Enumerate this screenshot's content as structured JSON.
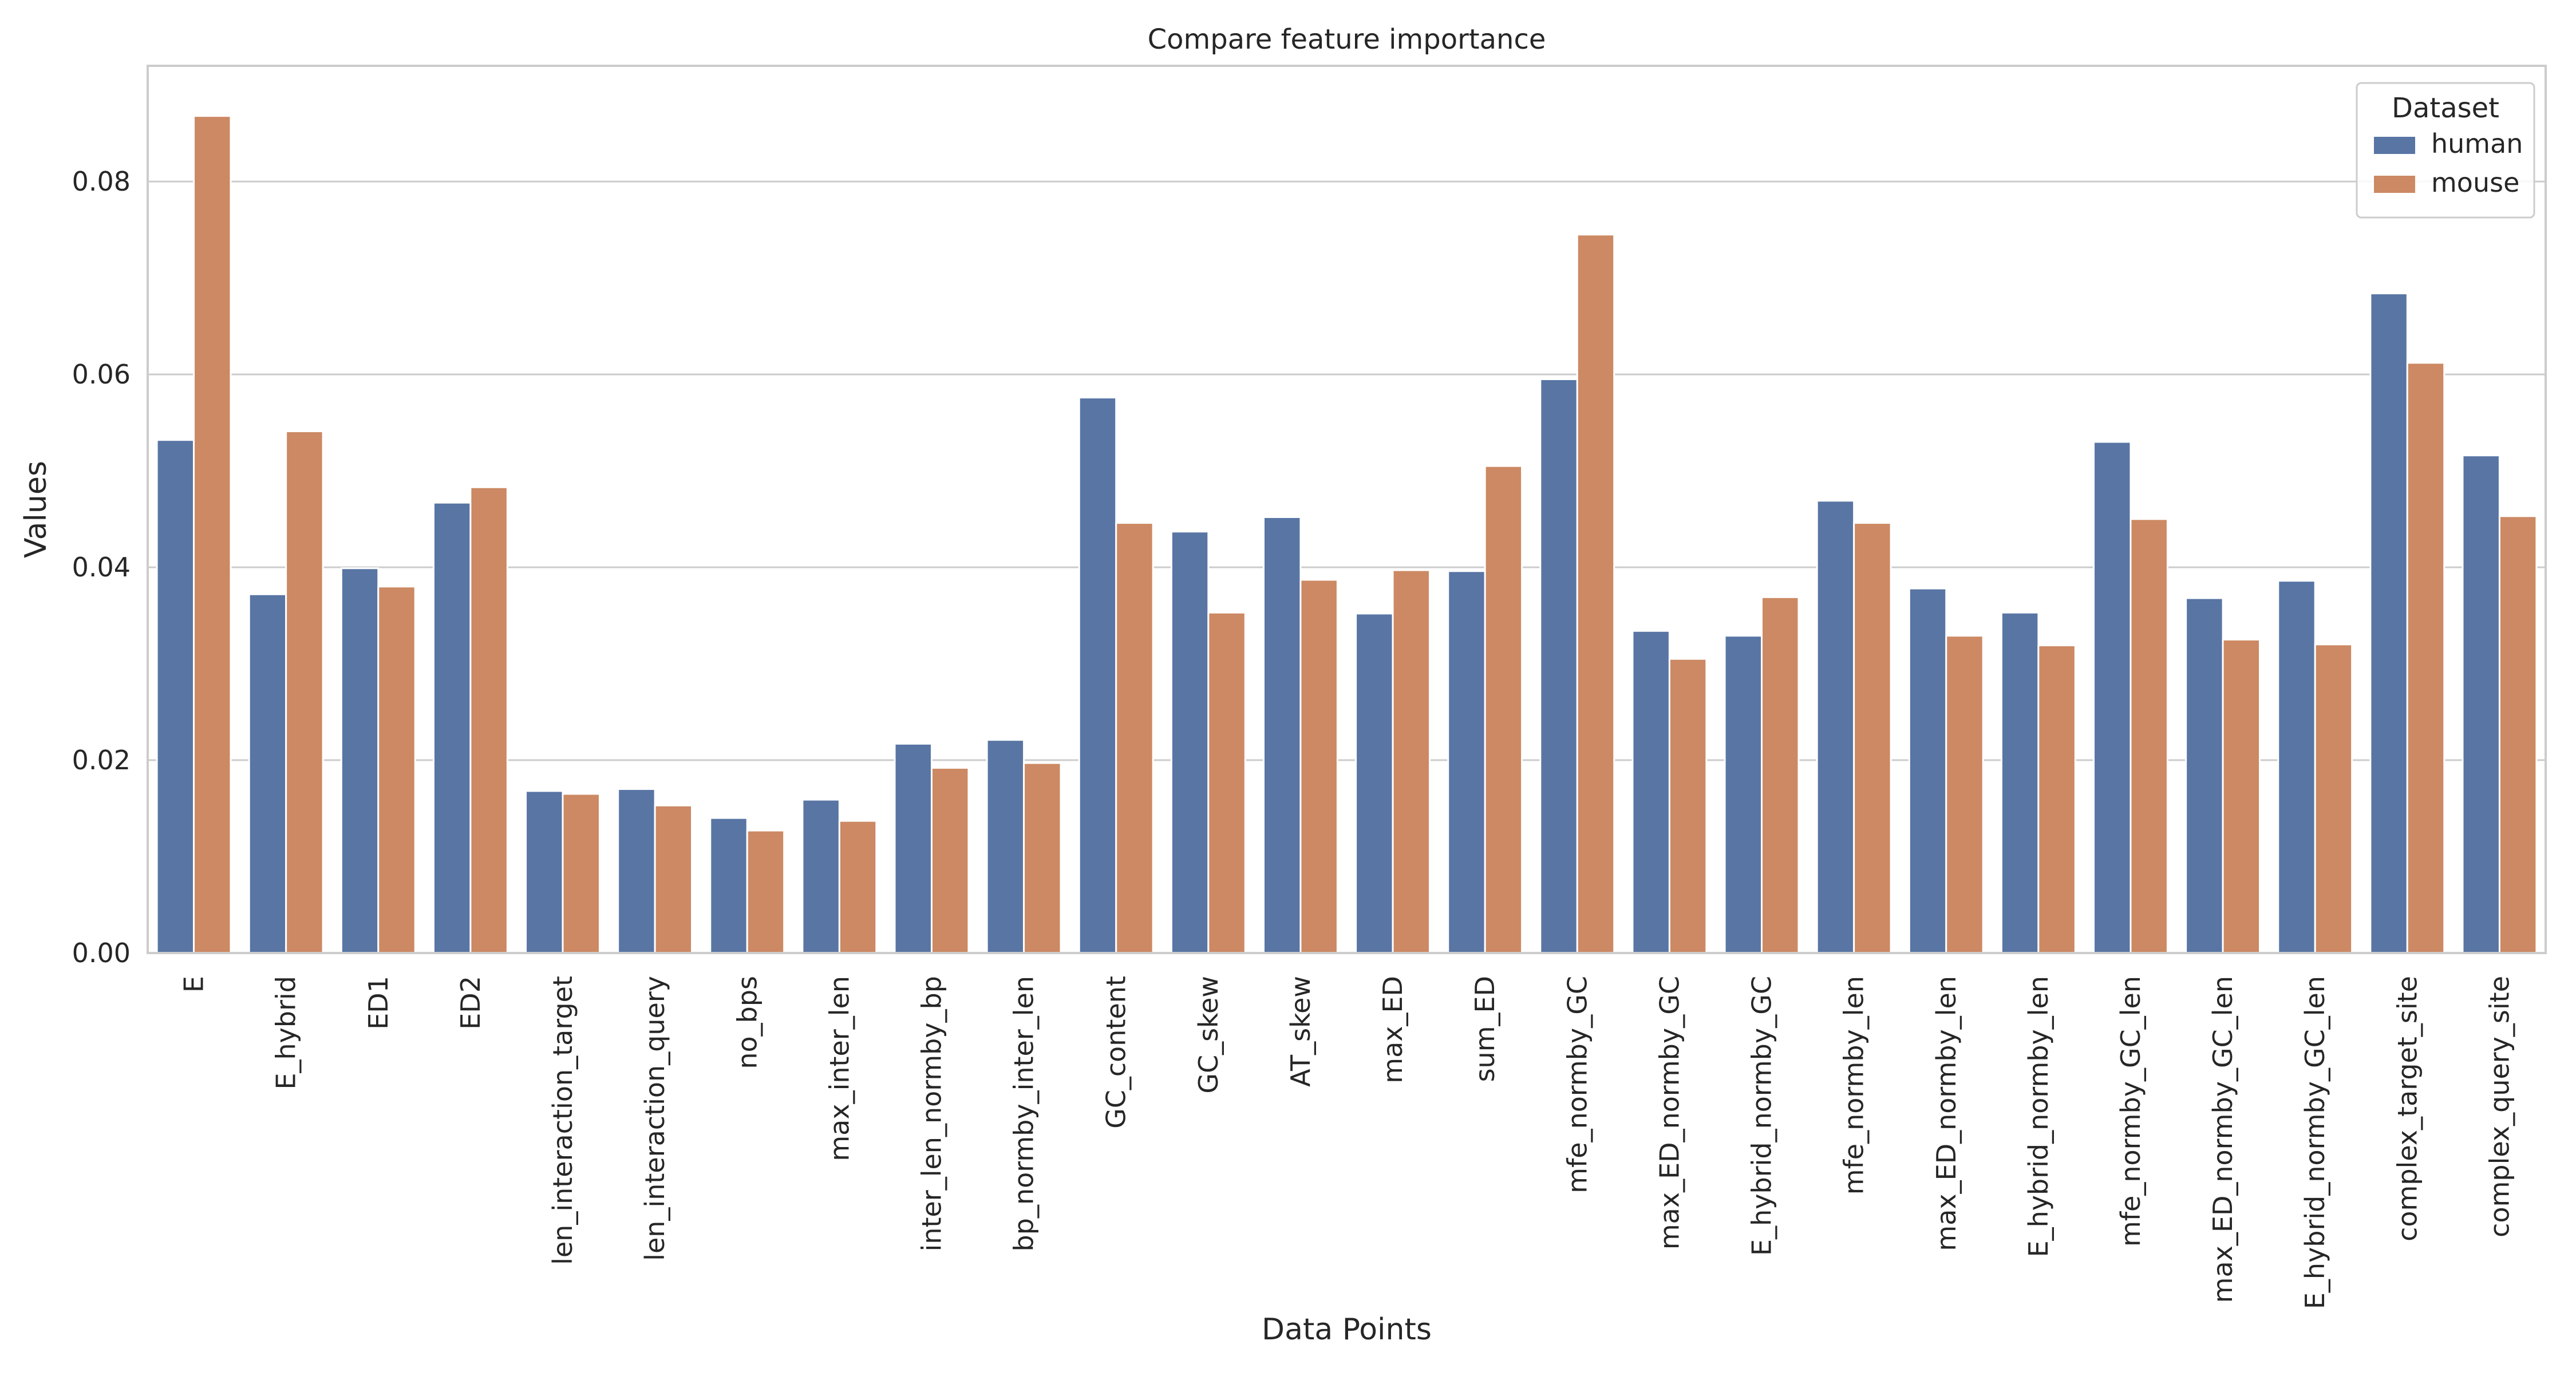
{
  "chart_data": {
    "type": "bar",
    "title": "Compare feature importance",
    "xlabel": "Data Points",
    "ylabel": "Values",
    "ylim": [
      0,
      0.092
    ],
    "yticks": [
      0.0,
      0.02,
      0.04,
      0.06,
      0.08
    ],
    "ytick_labels": [
      "0.00",
      "0.02",
      "0.04",
      "0.06",
      "0.08"
    ],
    "grid": true,
    "legend": {
      "title": "Dataset",
      "placement": "top-right"
    },
    "categories": [
      "E",
      "E_hybrid",
      "ED1",
      "ED2",
      "len_interaction_target",
      "len_interaction_query",
      "no_bps",
      "max_inter_len",
      "inter_len_normby_bp",
      "bp_normby_inter_len",
      "GC_content",
      "GC_skew",
      "AT_skew",
      "max_ED",
      "sum_ED",
      "mfe_normby_GC",
      "max_ED_normby_GC",
      "E_hybrid_normby_GC",
      "mfe_normby_len",
      "max_ED_normby_len",
      "E_hybrid_normby_len",
      "mfe_normby_GC_len",
      "max_ED_normby_GC_len",
      "E_hybrid_normby_GC_len",
      "complex_target_site",
      "complex_query_site"
    ],
    "series": [
      {
        "name": "human",
        "color": "#5875a4",
        "values": [
          0.0532,
          0.0372,
          0.0399,
          0.0467,
          0.0168,
          0.017,
          0.014,
          0.0159,
          0.0217,
          0.0221,
          0.0576,
          0.0437,
          0.0452,
          0.0352,
          0.0396,
          0.0595,
          0.0334,
          0.0329,
          0.0469,
          0.0378,
          0.0353,
          0.053,
          0.0368,
          0.0386,
          0.0684,
          0.0516
        ]
      },
      {
        "name": "mouse",
        "color": "#cc8963",
        "values": [
          0.0868,
          0.0541,
          0.038,
          0.0483,
          0.0165,
          0.0153,
          0.0127,
          0.0137,
          0.0192,
          0.0197,
          0.0446,
          0.0353,
          0.0387,
          0.0397,
          0.0505,
          0.0745,
          0.0305,
          0.0369,
          0.0446,
          0.0329,
          0.0319,
          0.045,
          0.0325,
          0.032,
          0.0612,
          0.0453
        ]
      }
    ]
  }
}
